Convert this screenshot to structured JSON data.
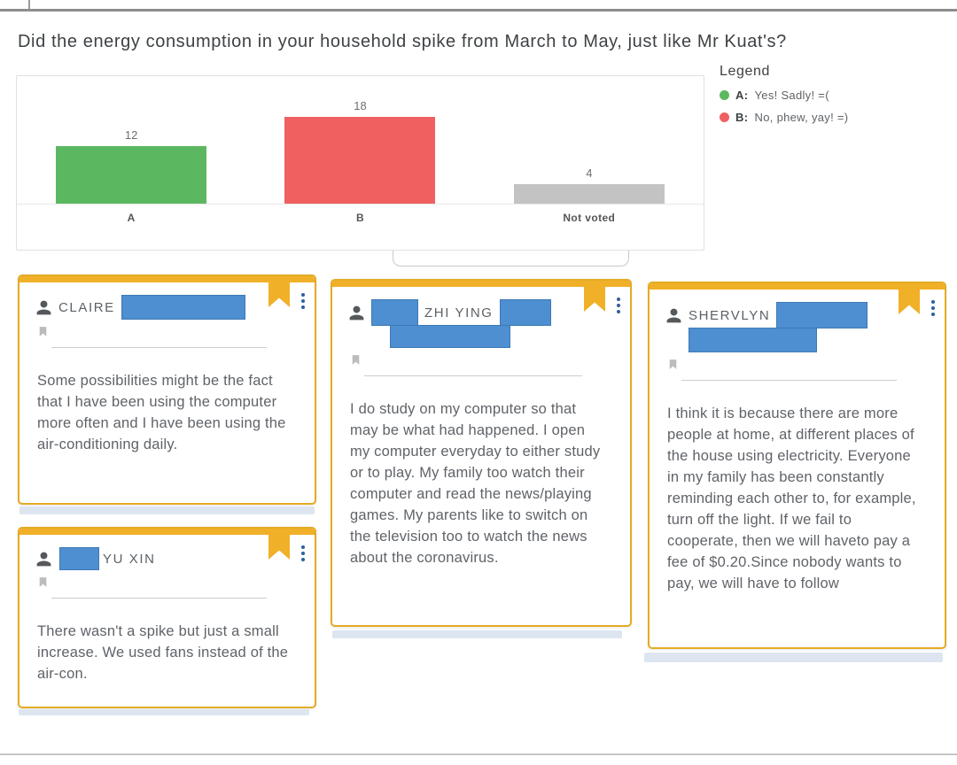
{
  "page": {
    "title": "Did the energy consumption in your household spike from March to May, just like Mr Kuat's?"
  },
  "chart_data": {
    "type": "bar",
    "categories": [
      "A",
      "B",
      "Not voted"
    ],
    "values": [
      12,
      18,
      4
    ],
    "colors": [
      "#5cb860",
      "#f06061",
      "#c3c3c3"
    ],
    "title": "",
    "xlabel": "",
    "ylabel": "",
    "ylim": [
      0,
      20
    ],
    "grid": false,
    "legend_position": "right"
  },
  "legend": {
    "title": "Legend",
    "items": [
      {
        "key": "A:",
        "label": "Yes! Sadly! =(",
        "color": "#5cb860"
      },
      {
        "key": "B:",
        "label": "No, phew, yay! =)",
        "color": "#f06061"
      }
    ]
  },
  "cards": [
    {
      "author": "CLAIRE",
      "body": "Some possibilities might be the fact that I have been using the computer more often and I have been using the air-conditioning daily."
    },
    {
      "author": "ZHI YING",
      "body": "I do study on my computer so that may be what had happened. I open my computer everyday to either study or to play. My family too watch their computer and read the news/playing games. My parents like to switch on the television too to watch the news about the coronavirus."
    },
    {
      "author": "SHERVLYN",
      "body": "I think it is because there are more people at home, at different places of the house using electricity. Everyone in my family has been constantly reminding each other to, for example, turn off the light. If we fail to cooperate, then we will haveto pay a fee of $0.20.Since nobody wants to pay, we will have to follow"
    },
    {
      "author": "YU XIN",
      "body": "There wasn't a spike but just a small increase. We used fans instead of the air-con."
    }
  ],
  "colors": {
    "card-accent": "#F0B027",
    "card-border": "#E3AC25",
    "kebab-blue": "#2E5F9B",
    "redaction-blue": "#4D8FD1"
  }
}
